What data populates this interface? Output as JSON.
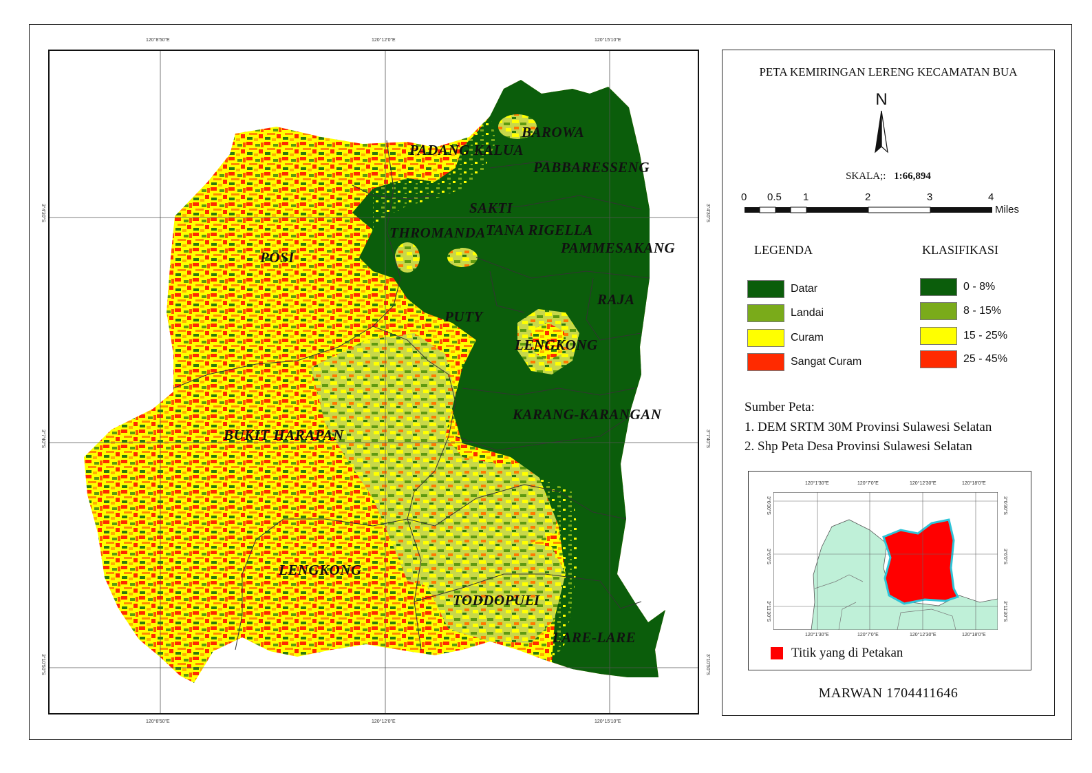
{
  "map": {
    "grid_labels": {
      "top": [
        "120°8'50\"E",
        "120°12'0\"E",
        "120°15'10\"E"
      ],
      "bottom": [
        "120°8'50\"E",
        "120°12'0\"E",
        "120°15'10\"E"
      ],
      "left": [
        "3°4'30\"S",
        "3°7'40\"S",
        "3°10'50\"S"
      ],
      "right": [
        "3°4'30\"S",
        "3°7'40\"S",
        "3°10'50\"S"
      ]
    },
    "villages": [
      {
        "id": "barowa",
        "label": "BAROWA"
      },
      {
        "id": "padang-kalua",
        "label": "PADANG KALUA"
      },
      {
        "id": "pabbaresseng",
        "label": "PABBARESSENG"
      },
      {
        "id": "sakti",
        "label": "SAKTI"
      },
      {
        "id": "thromanda",
        "label": "THROMANDA"
      },
      {
        "id": "tana-rigella",
        "label": "TANA RIGELLA"
      },
      {
        "id": "pammesakang",
        "label": "PAMMESAKANG"
      },
      {
        "id": "posi",
        "label": "POSI"
      },
      {
        "id": "raja",
        "label": "RAJA"
      },
      {
        "id": "puty",
        "label": "PUTY"
      },
      {
        "id": "lengkong-north",
        "label": "LENGKONG"
      },
      {
        "id": "karang-karangan",
        "label": "KARANG-KARANGAN"
      },
      {
        "id": "bukit-harapan",
        "label": "BUKIT HARAPAN"
      },
      {
        "id": "lengkong-south",
        "label": "LENGKONG"
      },
      {
        "id": "toddopuli",
        "label": "TODDOPULI"
      },
      {
        "id": "lare-lare",
        "label": "LARE-LARE"
      }
    ]
  },
  "legend_panel": {
    "title": "PETA KEMIRINGAN LERENG KECAMATAN BUA",
    "north_label": "N",
    "scale_prefix": "SKALA;:",
    "scale_value": "1:66,894",
    "scalebar_ticks": [
      "0",
      "0.5",
      "1",
      "2",
      "3",
      "4"
    ],
    "scalebar_unit": "Miles",
    "legend_title": "LEGENDA",
    "classification_title": "KLASIFIKASI",
    "classes": [
      {
        "name": "Datar",
        "range": "0 - 8%",
        "color": "#0b5d0b"
      },
      {
        "name": "Landai",
        "range": "8 - 15%",
        "color": "#7aab1a"
      },
      {
        "name": "Curam",
        "range": "15 - 25%",
        "color": "#ffff00"
      },
      {
        "name": "Sangat Curam",
        "range": "25 - 45%",
        "color": "#ff2a00"
      }
    ],
    "source_title": "Sumber Peta:",
    "sources": [
      "1. DEM  SRTM  30M Provinsi Sulawesi Selatan",
      "2. Shp Peta Desa Provinsi Sulawesi Selatan"
    ],
    "inset": {
      "grid_labels": {
        "top": [
          "120°1'30\"E",
          "120°7'0\"E",
          "120°12'30\"E",
          "120°18'0\"E"
        ],
        "bottom": [
          "120°1'30\"E",
          "120°7'0\"E",
          "120°12'30\"E",
          "120°18'0\"E"
        ],
        "left": [
          "3°0'30\"S",
          "3°6'0\"S",
          "3°11'30\"S"
        ],
        "right": [
          "3°0'30\"S",
          "3°6'0\"S",
          "3°11'30\"S"
        ]
      },
      "key_label": "Titik yang di Petakan",
      "highlight_color": "#ff0000",
      "land_color": "#bff0d8"
    },
    "author": "MARWAN 1704411646"
  }
}
